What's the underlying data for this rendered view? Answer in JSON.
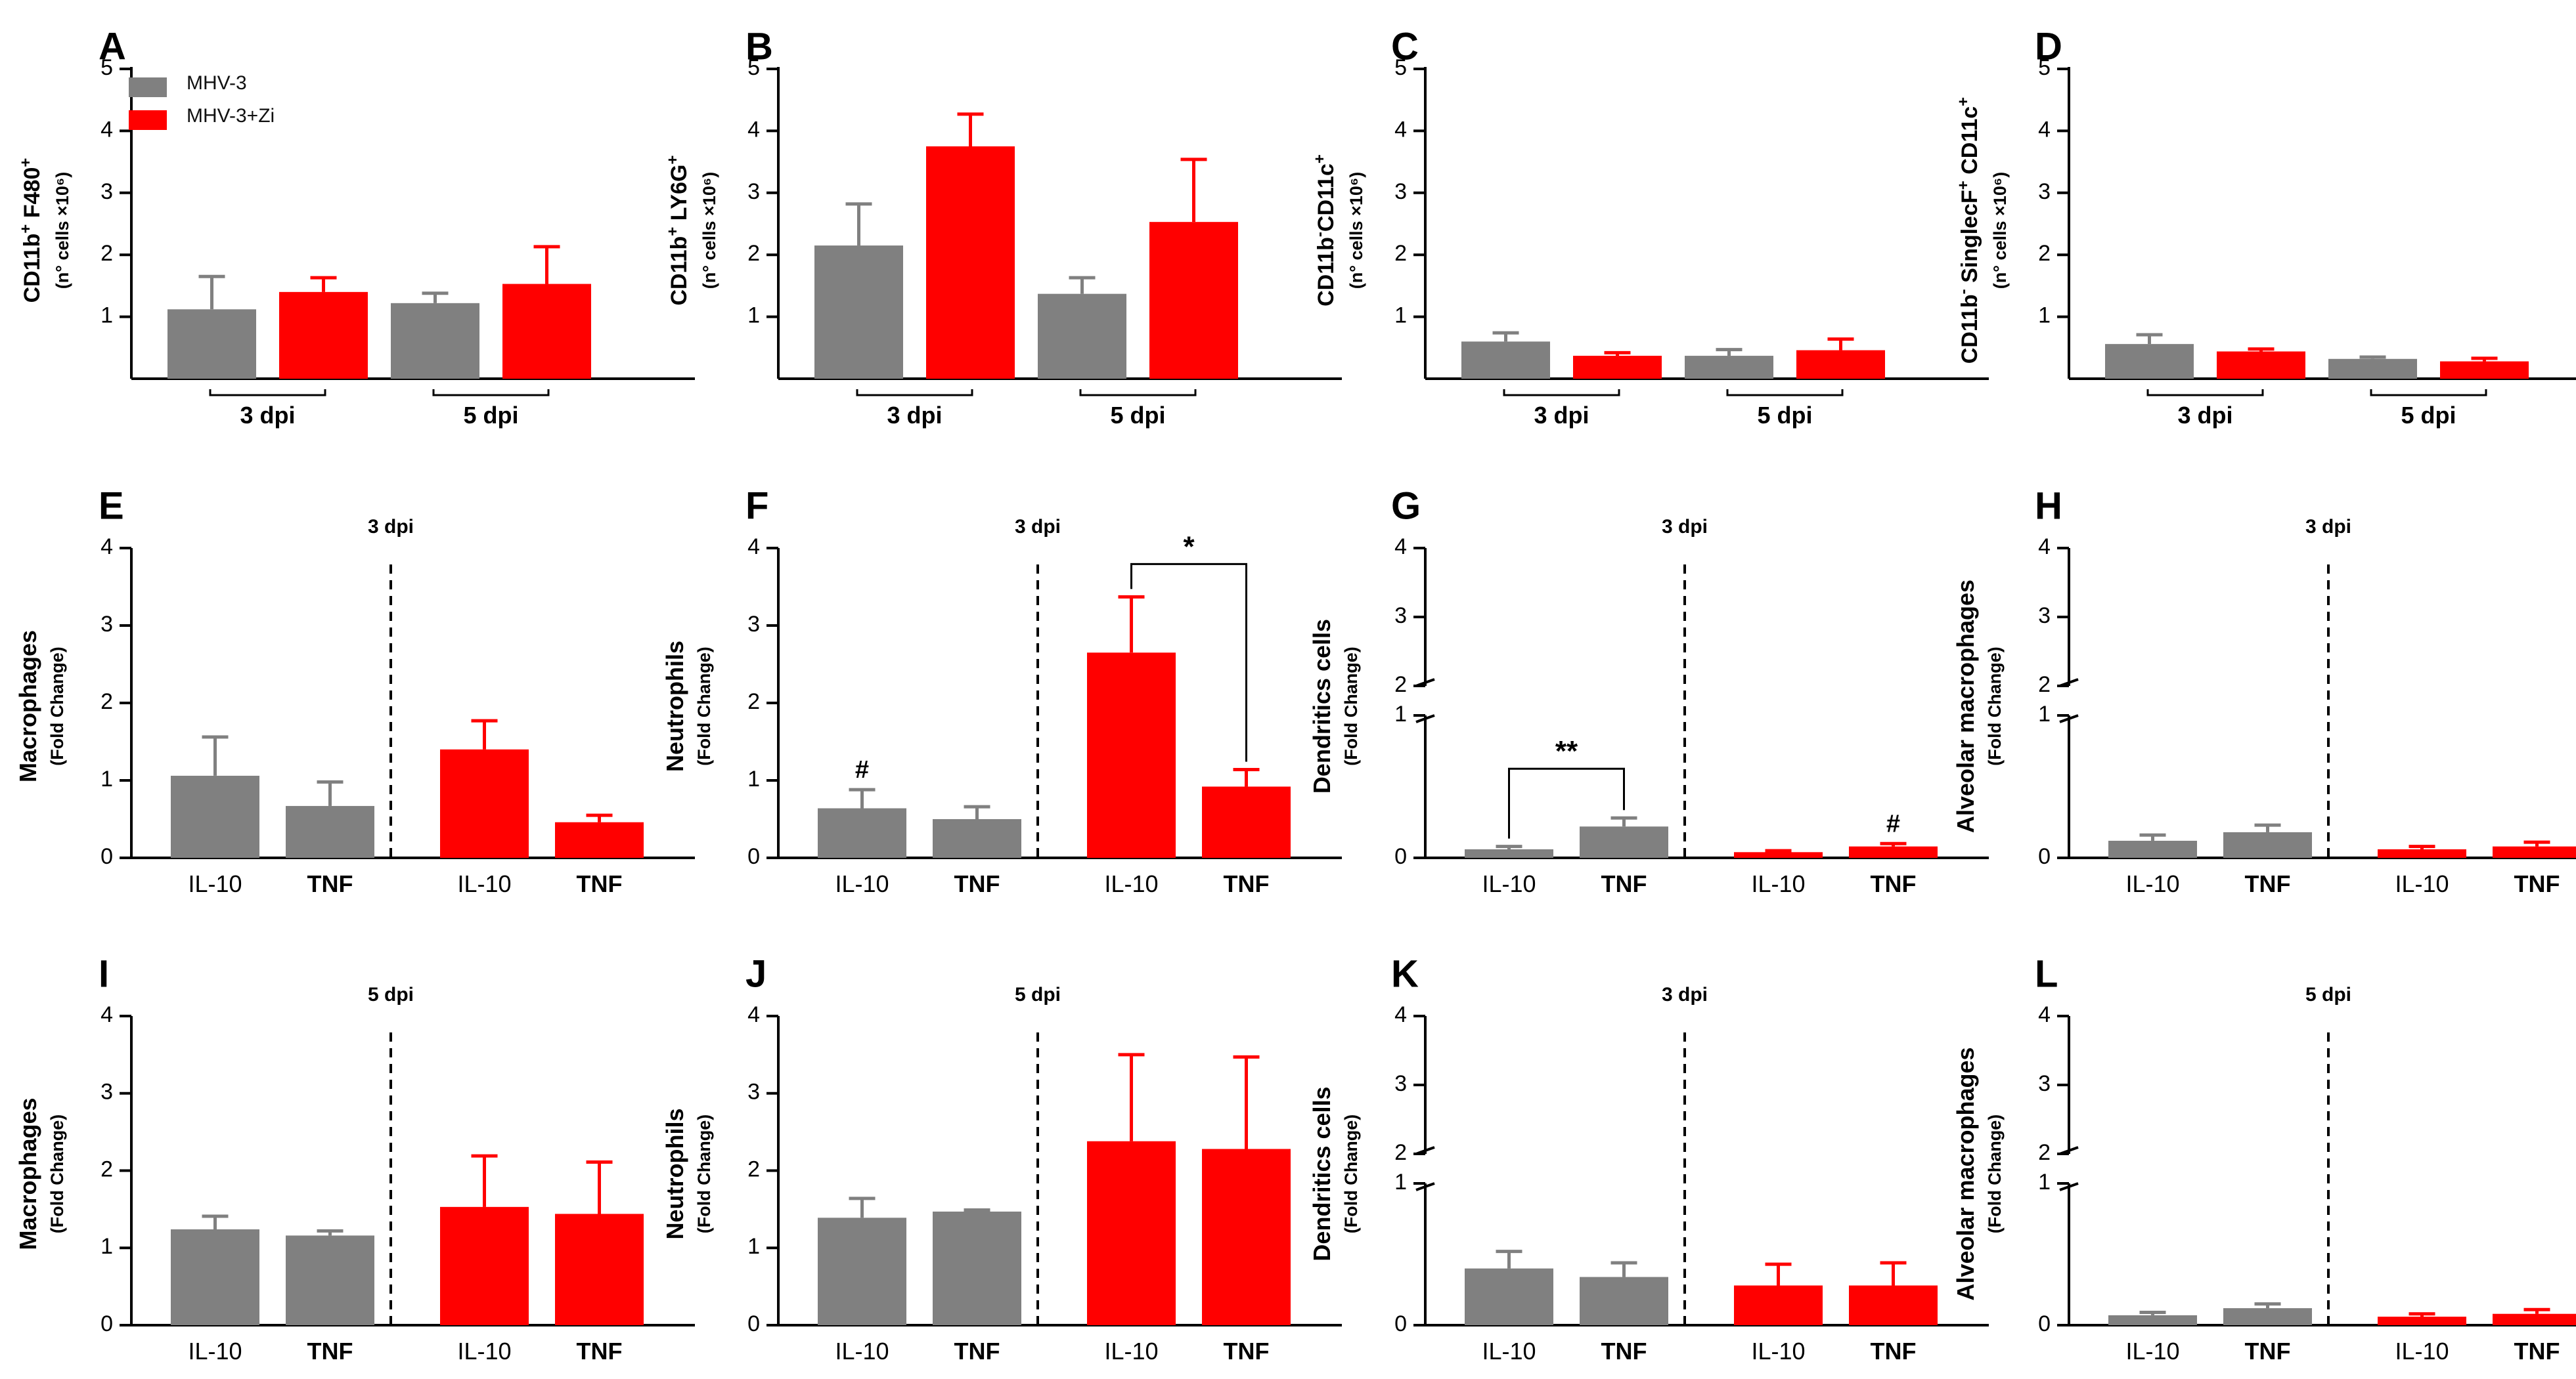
{
  "colors": {
    "gray": "#808080",
    "red": "#ff0000",
    "axis": "#000000"
  },
  "legend": {
    "items": [
      {
        "label": "MHV-3",
        "color": "#808080"
      },
      {
        "label": "MHV-3+Zi",
        "color": "#ff0000"
      }
    ]
  },
  "chart_data": [
    {
      "panel": "A",
      "type": "bar",
      "ylabel": [
        "CD11b",
        "+",
        " F480",
        "+"
      ],
      "ysub": "(n° cells ×10⁶)",
      "yticks": [
        "1",
        "2",
        "3",
        "4",
        "5"
      ],
      "ylim": [
        0,
        5
      ],
      "groups": [
        "3 dpi",
        "5 dpi"
      ],
      "series": [
        {
          "name": "MHV-3",
          "values": [
            1.12,
            1.22
          ],
          "errors": [
            0.53,
            0.16
          ]
        },
        {
          "name": "MHV-3+Zi",
          "values": [
            1.4,
            1.53
          ],
          "errors": [
            0.23,
            0.6
          ]
        }
      ]
    },
    {
      "panel": "B",
      "type": "bar",
      "ylabel": [
        "CD11b",
        "+",
        " LY6G",
        "+"
      ],
      "ysub": "(n° cells ×10⁶)",
      "yticks": [
        "1",
        "2",
        "3",
        "4",
        "5"
      ],
      "ylim": [
        0,
        5
      ],
      "groups": [
        "3 dpi",
        "5 dpi"
      ],
      "series": [
        {
          "name": "MHV-3",
          "values": [
            2.15,
            1.37
          ],
          "errors": [
            0.67,
            0.26
          ]
        },
        {
          "name": "MHV-3+Zi",
          "values": [
            3.75,
            2.53
          ],
          "errors": [
            0.52,
            1.01
          ]
        }
      ]
    },
    {
      "panel": "C",
      "type": "bar",
      "ylabel": [
        "CD11b",
        "-",
        "CD11c",
        "+"
      ],
      "ysub": "(n° cells ×10⁶)",
      "yticks": [
        "1",
        "2",
        "3",
        "4",
        "5"
      ],
      "ylim": [
        0,
        5
      ],
      "groups": [
        "3 dpi",
        "5 dpi"
      ],
      "series": [
        {
          "name": "MHV-3",
          "values": [
            0.6,
            0.37
          ],
          "errors": [
            0.14,
            0.1
          ]
        },
        {
          "name": "MHV-3+Zi",
          "values": [
            0.37,
            0.46
          ],
          "errors": [
            0.05,
            0.18
          ]
        }
      ]
    },
    {
      "panel": "D",
      "type": "bar",
      "ylabel": [
        "CD11b",
        "-",
        " SinglecF",
        "+",
        " CD11c",
        "+"
      ],
      "ysub": "(n° cells ×10⁶)",
      "yticks": [
        "1",
        "2",
        "3",
        "4",
        "5"
      ],
      "ylim": [
        0,
        5
      ],
      "groups": [
        "3 dpi",
        "5 dpi"
      ],
      "series": [
        {
          "name": "MHV-3",
          "values": [
            0.56,
            0.32
          ],
          "errors": [
            0.15,
            0.03
          ]
        },
        {
          "name": "MHV-3+Zi",
          "values": [
            0.44,
            0.28
          ],
          "errors": [
            0.04,
            0.05
          ]
        }
      ]
    },
    {
      "panel": "E",
      "type": "bar",
      "ylabel": "Macrophages",
      "ysub": "(Fold Change)",
      "dpi": "3 dpi",
      "categories": [
        "IL-10",
        "TNF",
        "IL-10",
        "TNF"
      ],
      "yticks": [
        "0",
        "1",
        "2",
        "3",
        "4"
      ],
      "ylim": [
        0,
        4
      ],
      "values": [
        1.06,
        0.67,
        1.4,
        0.46
      ],
      "errors": [
        0.5,
        0.31,
        0.37,
        0.09
      ],
      "colors": [
        "#808080",
        "#808080",
        "#ff0000",
        "#ff0000"
      ]
    },
    {
      "panel": "F",
      "type": "bar",
      "ylabel": "Neutrophils",
      "ysub": "(Fold Change)",
      "dpi": "3 dpi",
      "categories": [
        "IL-10",
        "TNF",
        "IL-10",
        "TNF"
      ],
      "yticks": [
        "0",
        "1",
        "2",
        "3",
        "4"
      ],
      "ylim": [
        0,
        4
      ],
      "values": [
        0.64,
        0.5,
        2.65,
        0.92
      ],
      "errors": [
        0.24,
        0.16,
        0.72,
        0.22
      ],
      "colors": [
        "#808080",
        "#808080",
        "#ff0000",
        "#ff0000"
      ],
      "marks": [
        {
          "bar": 0,
          "text": "#"
        }
      ],
      "sig": {
        "from": 2,
        "to": 3,
        "label": "*"
      }
    },
    {
      "panel": "G",
      "type": "bar",
      "ylabel": "Dendritics cells",
      "ysub": "(Fold Change)",
      "dpi": "3 dpi",
      "categories": [
        "IL-10",
        "TNF",
        "IL-10",
        "TNF"
      ],
      "yticks": [
        "0",
        "1",
        "2",
        "3",
        "4"
      ],
      "ylim": [
        0,
        4
      ],
      "broken": true,
      "values": [
        0.06,
        0.22,
        0.04,
        0.08
      ],
      "errors": [
        0.02,
        0.06,
        0.01,
        0.02
      ],
      "colors": [
        "#808080",
        "#808080",
        "#ff0000",
        "#ff0000"
      ],
      "marks": [
        {
          "bar": 3,
          "text": "#"
        }
      ],
      "sig": {
        "from": 0,
        "to": 1,
        "label": "**"
      }
    },
    {
      "panel": "H",
      "type": "bar",
      "ylabel": "Alveolar macrophages",
      "ysub": "(Fold Change)",
      "dpi": "3 dpi",
      "categories": [
        "IL-10",
        "TNF",
        "IL-10",
        "TNF"
      ],
      "yticks": [
        "0",
        "1",
        "2",
        "3",
        "4"
      ],
      "ylim": [
        0,
        4
      ],
      "broken": true,
      "values": [
        0.12,
        0.18,
        0.06,
        0.08
      ],
      "errors": [
        0.04,
        0.05,
        0.02,
        0.03
      ],
      "colors": [
        "#808080",
        "#808080",
        "#ff0000",
        "#ff0000"
      ]
    },
    {
      "panel": "I",
      "type": "bar",
      "ylabel": "Macrophages",
      "ysub": "(Fold Change)",
      "dpi": "5 dpi",
      "categories": [
        "IL-10",
        "TNF",
        "IL-10",
        "TNF"
      ],
      "yticks": [
        "0",
        "1",
        "2",
        "3",
        "4"
      ],
      "ylim": [
        0,
        4
      ],
      "values": [
        1.24,
        1.16,
        1.53,
        1.44
      ],
      "errors": [
        0.17,
        0.06,
        0.66,
        0.67
      ],
      "colors": [
        "#808080",
        "#808080",
        "#ff0000",
        "#ff0000"
      ]
    },
    {
      "panel": "J",
      "type": "bar",
      "ylabel": "Neutrophils",
      "ysub": "(Fold Change)",
      "dpi": "5 dpi",
      "categories": [
        "IL-10",
        "TNF",
        "IL-10",
        "TNF"
      ],
      "yticks": [
        "0",
        "1",
        "2",
        "3",
        "4"
      ],
      "ylim": [
        0,
        4
      ],
      "values": [
        1.39,
        1.47,
        2.38,
        2.28
      ],
      "errors": [
        0.25,
        0.02,
        1.12,
        1.19
      ],
      "colors": [
        "#808080",
        "#808080",
        "#ff0000",
        "#ff0000"
      ]
    },
    {
      "panel": "K",
      "type": "bar",
      "ylabel": "Dendritics cells",
      "ysub": "(Fold Change)",
      "dpi": "3 dpi",
      "categories": [
        "IL-10",
        "TNF",
        "IL-10",
        "TNF"
      ],
      "yticks": [
        "0",
        "1",
        "2",
        "3",
        "4"
      ],
      "ylim": [
        0,
        4
      ],
      "broken": true,
      "values": [
        0.4,
        0.34,
        0.28,
        0.28
      ],
      "errors": [
        0.12,
        0.1,
        0.15,
        0.16
      ],
      "colors": [
        "#808080",
        "#808080",
        "#ff0000",
        "#ff0000"
      ]
    },
    {
      "panel": "L",
      "type": "bar",
      "ylabel": "Alveolar macrophages",
      "ysub": "(Fold Change)",
      "dpi": "5 dpi",
      "categories": [
        "IL-10",
        "TNF",
        "IL-10",
        "TNF"
      ],
      "yticks": [
        "0",
        "1",
        "2",
        "3",
        "4"
      ],
      "ylim": [
        0,
        4
      ],
      "broken": true,
      "values": [
        0.07,
        0.12,
        0.06,
        0.08
      ],
      "errors": [
        0.02,
        0.03,
        0.02,
        0.03
      ],
      "colors": [
        "#808080",
        "#808080",
        "#ff0000",
        "#ff0000"
      ]
    }
  ]
}
